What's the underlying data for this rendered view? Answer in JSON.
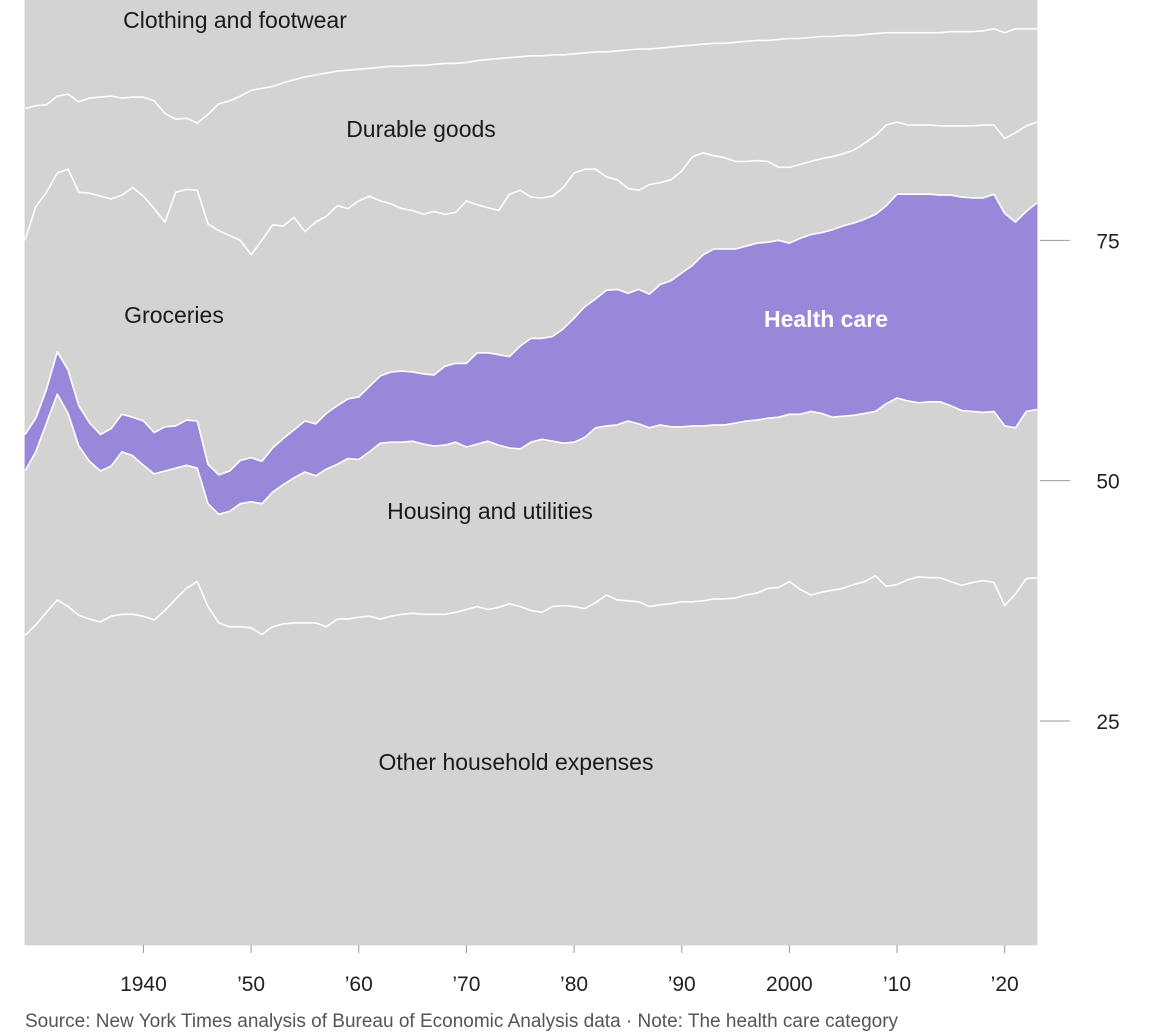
{
  "chart_data": {
    "type": "area",
    "stacked": true,
    "percent": true,
    "x": [
      1929,
      1930,
      1931,
      1932,
      1933,
      1934,
      1935,
      1936,
      1937,
      1938,
      1939,
      1940,
      1941,
      1942,
      1943,
      1944,
      1945,
      1946,
      1947,
      1948,
      1949,
      1950,
      1951,
      1952,
      1953,
      1954,
      1955,
      1956,
      1957,
      1958,
      1959,
      1960,
      1961,
      1962,
      1963,
      1964,
      1965,
      1966,
      1967,
      1968,
      1969,
      1970,
      1971,
      1972,
      1973,
      1974,
      1975,
      1976,
      1977,
      1978,
      1979,
      1980,
      1981,
      1982,
      1983,
      1984,
      1985,
      1986,
      1987,
      1988,
      1989,
      1990,
      1991,
      1992,
      1993,
      1994,
      1995,
      1996,
      1997,
      1998,
      1999,
      2000,
      2001,
      2002,
      2003,
      2004,
      2005,
      2006,
      2007,
      2008,
      2009,
      2010,
      2011,
      2012,
      2013,
      2014,
      2015,
      2016,
      2017,
      2018,
      2019,
      2020,
      2021,
      2022,
      2023
    ],
    "boundaries": [
      {
        "name": "Other household expenses (top)",
        "values": [
          33.9,
          35.0,
          36.3,
          37.6,
          36.9,
          36.0,
          35.6,
          35.3,
          35.9,
          36.1,
          36.1,
          35.9,
          35.5,
          36.5,
          37.7,
          38.8,
          39.5,
          36.9,
          35.2,
          34.8,
          34.8,
          34.7,
          34.0,
          34.8,
          35.1,
          35.2,
          35.2,
          35.2,
          34.8,
          35.6,
          35.6,
          35.8,
          35.9,
          35.6,
          35.9,
          36.1,
          36.2,
          36.1,
          36.1,
          36.1,
          36.3,
          36.6,
          36.9,
          36.6,
          36.8,
          37.2,
          36.9,
          36.5,
          36.3,
          36.9,
          37.0,
          36.9,
          36.7,
          37.3,
          38.1,
          37.6,
          37.5,
          37.4,
          36.9,
          37.1,
          37.2,
          37.4,
          37.4,
          37.5,
          37.7,
          37.7,
          37.8,
          38.1,
          38.3,
          38.8,
          38.9,
          39.5,
          38.7,
          38.1,
          38.4,
          38.6,
          38.8,
          39.2,
          39.5,
          40.1,
          39.0,
          39.2,
          39.7,
          40.0,
          39.9,
          39.9,
          39.5,
          39.1,
          39.4,
          39.6,
          39.4,
          37.0,
          38.2,
          39.8,
          39.9
        ]
      },
      {
        "name": "Housing and utilities (top)",
        "values": [
          51.0,
          53.0,
          56.0,
          59.0,
          57.0,
          53.6,
          52.0,
          51.0,
          51.5,
          53.0,
          52.6,
          51.6,
          50.7,
          51.0,
          51.3,
          51.6,
          51.3,
          47.6,
          46.5,
          46.8,
          47.6,
          47.8,
          47.6,
          48.8,
          49.6,
          50.3,
          50.9,
          50.5,
          51.2,
          51.7,
          52.3,
          52.2,
          53.0,
          53.9,
          54.0,
          54.0,
          54.1,
          53.8,
          53.6,
          53.7,
          54.0,
          53.5,
          53.8,
          54.1,
          53.7,
          53.4,
          53.3,
          54.0,
          54.3,
          54.1,
          53.9,
          54.0,
          54.5,
          55.5,
          55.7,
          55.8,
          56.2,
          55.9,
          55.5,
          55.8,
          55.6,
          55.6,
          55.7,
          55.7,
          55.8,
          55.8,
          56.0,
          56.2,
          56.3,
          56.5,
          56.6,
          56.9,
          56.9,
          57.2,
          57.0,
          56.6,
          56.7,
          56.8,
          57.0,
          57.2,
          58.0,
          58.6,
          58.3,
          58.1,
          58.2,
          58.2,
          57.8,
          57.3,
          57.2,
          57.1,
          57.2,
          55.7,
          55.5,
          57.2,
          57.4
        ]
      },
      {
        "name": "Health care (top)",
        "values": [
          54.8,
          56.5,
          59.5,
          63.4,
          61.5,
          57.8,
          56.0,
          54.8,
          55.4,
          56.9,
          56.6,
          56.2,
          55.0,
          55.6,
          55.7,
          56.3,
          56.2,
          51.7,
          50.6,
          51.0,
          52.1,
          52.4,
          52.0,
          53.4,
          54.4,
          55.3,
          56.2,
          55.9,
          57.0,
          57.8,
          58.5,
          58.7,
          59.8,
          60.9,
          61.3,
          61.4,
          61.3,
          61.1,
          61.0,
          61.9,
          62.2,
          62.2,
          63.3,
          63.3,
          63.1,
          62.9,
          64.0,
          64.8,
          64.8,
          65.0,
          65.8,
          66.9,
          68.1,
          68.9,
          69.8,
          69.9,
          69.5,
          69.9,
          69.4,
          70.4,
          70.8,
          71.6,
          72.4,
          73.5,
          74.1,
          74.1,
          74.1,
          74.4,
          74.7,
          74.8,
          75.0,
          74.7,
          75.2,
          75.6,
          75.8,
          76.1,
          76.5,
          76.8,
          77.2,
          77.7,
          78.6,
          79.8,
          79.8,
          79.8,
          79.8,
          79.7,
          79.7,
          79.5,
          79.4,
          79.4,
          79.8,
          77.8,
          76.9,
          78.0,
          78.9
        ]
      },
      {
        "name": "Groceries (top)",
        "values": [
          75.0,
          78.5,
          80.0,
          82.0,
          82.4,
          80.0,
          79.9,
          79.6,
          79.3,
          79.7,
          80.5,
          79.6,
          78.3,
          76.9,
          80.0,
          80.3,
          80.2,
          76.7,
          76.0,
          75.5,
          75.0,
          73.5,
          75.0,
          76.6,
          76.5,
          77.4,
          75.9,
          76.9,
          77.5,
          78.6,
          78.3,
          79.1,
          79.6,
          79.1,
          78.8,
          78.3,
          78.1,
          77.7,
          78.0,
          77.7,
          77.9,
          79.1,
          78.7,
          78.4,
          78.1,
          79.8,
          80.2,
          79.5,
          79.4,
          79.6,
          80.5,
          82.0,
          82.4,
          82.4,
          81.6,
          81.3,
          80.4,
          80.2,
          80.8,
          81.0,
          81.3,
          82.2,
          83.7,
          84.1,
          83.8,
          83.6,
          83.2,
          83.2,
          83.3,
          83.2,
          82.6,
          82.6,
          82.9,
          83.2,
          83.5,
          83.7,
          84.0,
          84.4,
          85.1,
          85.9,
          87.0,
          87.3,
          87.0,
          87.0,
          87.0,
          86.9,
          86.9,
          86.9,
          86.9,
          87.0,
          87.0,
          85.6,
          86.2,
          86.9,
          87.3
        ]
      },
      {
        "name": "Durable goods (top)",
        "values": [
          88.7,
          89.0,
          89.1,
          90.0,
          90.2,
          89.4,
          89.8,
          89.9,
          90.0,
          89.8,
          89.9,
          89.9,
          89.5,
          88.2,
          87.6,
          87.7,
          87.2,
          88.1,
          89.2,
          89.5,
          90.0,
          90.6,
          90.8,
          91.0,
          91.4,
          91.7,
          92.0,
          92.2,
          92.4,
          92.6,
          92.7,
          92.8,
          92.9,
          93.0,
          93.1,
          93.1,
          93.2,
          93.2,
          93.3,
          93.4,
          93.4,
          93.5,
          93.7,
          93.8,
          93.9,
          94.0,
          94.1,
          94.2,
          94.2,
          94.3,
          94.3,
          94.4,
          94.5,
          94.6,
          94.6,
          94.7,
          94.8,
          94.9,
          94.9,
          95.0,
          95.1,
          95.2,
          95.3,
          95.4,
          95.5,
          95.5,
          95.6,
          95.7,
          95.8,
          95.8,
          95.9,
          96.0,
          96.0,
          96.1,
          96.2,
          96.2,
          96.3,
          96.3,
          96.4,
          96.5,
          96.6,
          96.6,
          96.6,
          96.6,
          96.6,
          96.6,
          96.7,
          96.7,
          96.7,
          96.8,
          97.0,
          96.6,
          97.0,
          97.0,
          97.0
        ]
      }
    ],
    "bands": [
      {
        "name": "Other household expenses",
        "highlight": false
      },
      {
        "name": "Housing and utilities",
        "highlight": false
      },
      {
        "name": "Health care",
        "highlight": true
      },
      {
        "name": "Groceries",
        "highlight": false
      },
      {
        "name": "Durable goods",
        "highlight": false
      },
      {
        "name": "Clothing and footwear",
        "highlight": false
      }
    ],
    "xlim": [
      1929,
      2023
    ],
    "ylim": [
      0,
      100
    ],
    "xticks": [
      {
        "value": 1940,
        "label": "1940"
      },
      {
        "value": 1950,
        "label": "’50"
      },
      {
        "value": 1960,
        "label": "’60"
      },
      {
        "value": 1970,
        "label": "’70"
      },
      {
        "value": 1980,
        "label": "’80"
      },
      {
        "value": 1990,
        "label": "’90"
      },
      {
        "value": 2000,
        "label": "2000"
      },
      {
        "value": 2010,
        "label": "’10"
      },
      {
        "value": 2020,
        "label": "’20"
      }
    ],
    "yticks": [
      {
        "value": 25,
        "label": "25"
      },
      {
        "value": 50,
        "label": "50"
      },
      {
        "value": 75,
        "label": "75"
      }
    ],
    "colors": {
      "band": "#d3d3d3",
      "highlight": "#9987d9",
      "boundary": "#ffffff",
      "tick": "#999999"
    }
  },
  "source": "Source: New York Times analysis of Bureau of Economic Analysis data · Note: The health care category"
}
